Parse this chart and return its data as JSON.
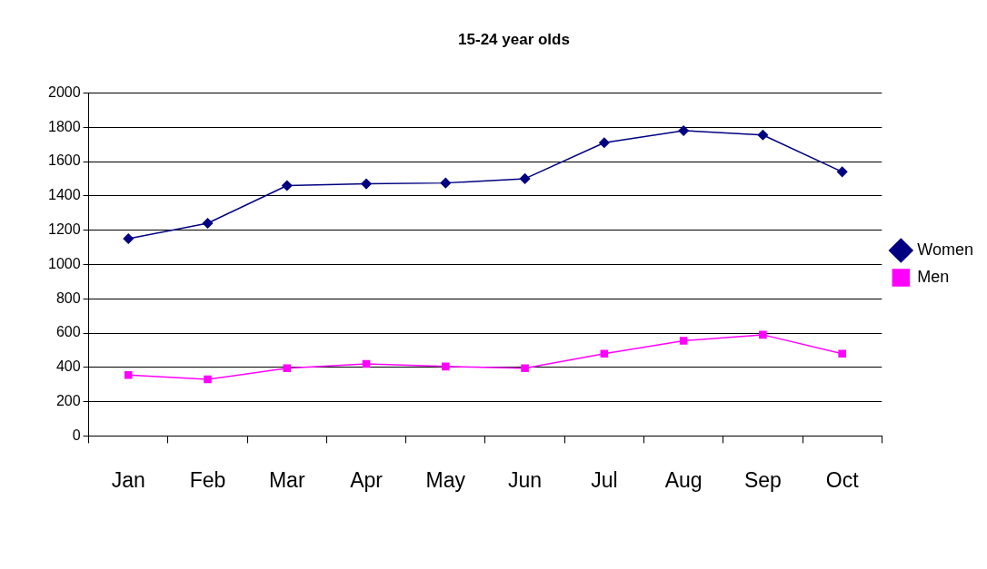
{
  "chart_data": {
    "type": "line",
    "title": "15-24 year olds",
    "categories": [
      "Jan",
      "Feb",
      "Mar",
      "Apr",
      "May",
      "Jun",
      "Jul",
      "Aug",
      "Sep",
      "Oct"
    ],
    "series": [
      {
        "name": "Women",
        "color": "#000080",
        "marker": "diamond",
        "values": [
          1150,
          1240,
          1460,
          1470,
          1475,
          1500,
          1710,
          1780,
          1755,
          1540
        ]
      },
      {
        "name": "Men",
        "color": "#ff00ff",
        "marker": "square",
        "values": [
          355,
          330,
          395,
          420,
          405,
          395,
          480,
          555,
          590,
          480
        ]
      }
    ],
    "ylim": [
      0,
      2000
    ],
    "yticks": [
      0,
      200,
      400,
      600,
      800,
      1000,
      1200,
      1400,
      1600,
      1800,
      2000
    ],
    "grid": "y",
    "legend": "right",
    "line_style": "solid"
  }
}
